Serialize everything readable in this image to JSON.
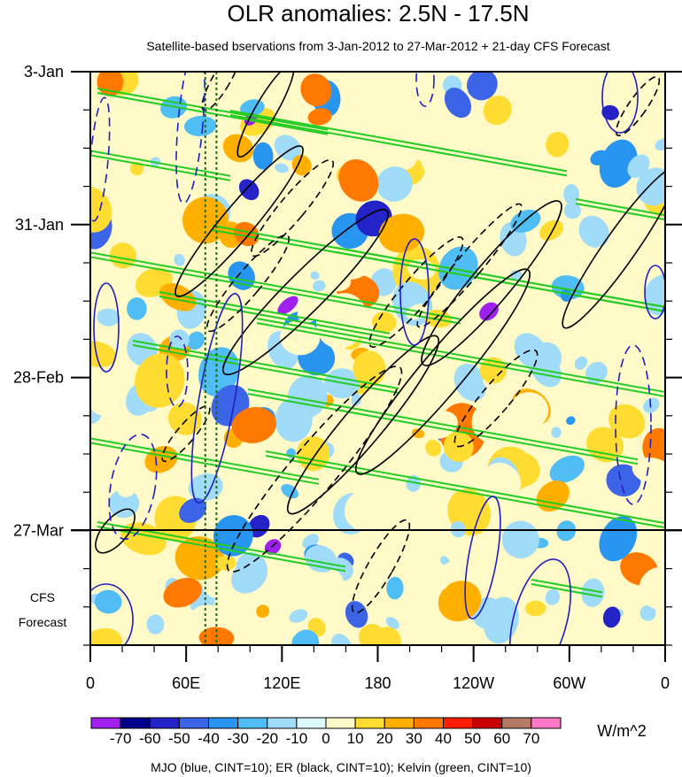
{
  "chart_data": {
    "type": "heatmap",
    "title": "OLR anomalies: 2.5N - 17.5N",
    "subtitle": "Satellite-based bservations from 3-Jan-2012 to 27-Mar-2012 + 21-day CFS Forecast",
    "x_ticks": [
      "0",
      "60E",
      "120E",
      "180",
      "120W",
      "60W",
      "0"
    ],
    "x_tick_values": [
      0,
      60,
      120,
      180,
      240,
      300,
      360
    ],
    "y_ticks": [
      "3-Jan",
      "31-Jan",
      "28-Feb",
      "27-Mar"
    ],
    "y_tick_days": [
      0,
      28,
      56,
      84
    ],
    "y_range_days": [
      0,
      105
    ],
    "forecast_label": [
      "CFS",
      "Forecast"
    ],
    "forecast_start_day": 84,
    "colorbar": {
      "unit": "W/m^2",
      "labels": [
        "-70",
        "-60",
        "-50",
        "-40",
        "-30",
        "-20",
        "-10",
        "0",
        "10",
        "20",
        "30",
        "40",
        "50",
        "60",
        "70"
      ],
      "colors": [
        "#a020f0",
        "#00008b",
        "#2323c8",
        "#3c64e6",
        "#2896f0",
        "#50bef5",
        "#a0dcfa",
        "#dcfaff",
        "#fffac8",
        "#ffdc32",
        "#ffaf00",
        "#ff7800",
        "#ff1e00",
        "#c80000",
        "#b47a64",
        "#ff78c8"
      ]
    },
    "footer": "MJO (blue, CINT=10); ER (black, CINT=10); Kelvin (green, CINT=10)",
    "contour_colors": {
      "mjo": "#2020c0",
      "er": "#000000",
      "kelvin": "#22cc22"
    },
    "reference_lines_deg": [
      72,
      79
    ],
    "grid": false
  }
}
